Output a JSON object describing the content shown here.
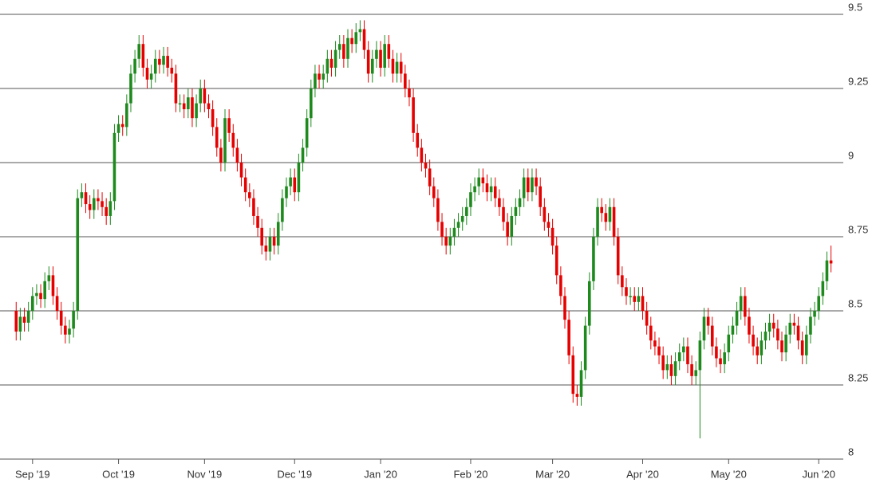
{
  "chart_data": {
    "type": "candlestick",
    "up_color": "#1e8a1e",
    "down_color": "#e60000",
    "grid": true,
    "ylim": [
      8,
      9.5
    ],
    "yticks": [
      8,
      8.25,
      8.5,
      8.75,
      9,
      9.25,
      9.5
    ],
    "xlim": [
      -2,
      202
    ],
    "xticks": [
      {
        "value": 4,
        "label": "Sep '19"
      },
      {
        "value": 25,
        "label": "Oct '19"
      },
      {
        "value": 46,
        "label": "Nov '19"
      },
      {
        "value": 68,
        "label": "Dec '19"
      },
      {
        "value": 89,
        "label": "Jan '20"
      },
      {
        "value": 111,
        "label": "Feb '20"
      },
      {
        "value": 131,
        "label": "Mar '20"
      },
      {
        "value": 153,
        "label": "Apr '20"
      },
      {
        "value": 174,
        "label": "May '20"
      },
      {
        "value": 196,
        "label": "Jun '20"
      }
    ],
    "categories": [
      null,
      null,
      null,
      null,
      null,
      null,
      null,
      null,
      null,
      null,
      null,
      null,
      null,
      null,
      null,
      null,
      null,
      null,
      null,
      null,
      null,
      null,
      null,
      null,
      null,
      null,
      null,
      null,
      null,
      null,
      null,
      null,
      null,
      null,
      null,
      null,
      null,
      null,
      null,
      null,
      null,
      null,
      null,
      null,
      null,
      null,
      null,
      null,
      null,
      null,
      null,
      null,
      null,
      null,
      null,
      null,
      null,
      null,
      null,
      null,
      null,
      null,
      null,
      null,
      null,
      null,
      null,
      null,
      null,
      null,
      null,
      null,
      null,
      null,
      null,
      null,
      null,
      null,
      null,
      null,
      null,
      null,
      null,
      null,
      null,
      null,
      null,
      null,
      null,
      null,
      null,
      null,
      null,
      null,
      null,
      null,
      null,
      null,
      null,
      null,
      null,
      null,
      null,
      null,
      null,
      null,
      null,
      null,
      null,
      null,
      null,
      null,
      null,
      null,
      null,
      null,
      null,
      null,
      null,
      null,
      null,
      null,
      null,
      null,
      null,
      null,
      null,
      null,
      null,
      null,
      null,
      null,
      null,
      null,
      null,
      null,
      null,
      null,
      null,
      null,
      null,
      null,
      null,
      null,
      null,
      null,
      null,
      null,
      null,
      null,
      null,
      null,
      null,
      null,
      null,
      null,
      null,
      null,
      null,
      null,
      null,
      null,
      null,
      null,
      null,
      null,
      null,
      null,
      null,
      null,
      null,
      null,
      null,
      null,
      null,
      null,
      null,
      null,
      null,
      null,
      null,
      null,
      null,
      null,
      null,
      null,
      null,
      null,
      null,
      null,
      null,
      null,
      null,
      null,
      null,
      null,
      null,
      null,
      null,
      null
    ],
    "open": [
      8.5,
      8.43,
      8.48,
      8.46,
      8.5,
      8.55,
      8.56,
      8.54,
      8.6,
      8.62,
      8.55,
      8.5,
      8.45,
      8.42,
      8.44,
      8.5,
      8.88,
      8.9,
      8.86,
      8.84,
      8.88,
      8.87,
      8.85,
      8.82,
      8.87,
      9.1,
      9.13,
      9.12,
      9.2,
      9.3,
      9.35,
      9.4,
      9.32,
      9.28,
      9.3,
      9.35,
      9.33,
      9.36,
      9.32,
      9.3,
      9.2,
      9.2,
      9.18,
      9.22,
      9.15,
      9.2,
      9.25,
      9.2,
      9.18,
      9.12,
      9.05,
      9.0,
      9.15,
      9.1,
      9.05,
      9.0,
      8.95,
      8.9,
      8.88,
      8.82,
      8.78,
      8.72,
      8.7,
      8.75,
      8.72,
      8.8,
      8.88,
      8.92,
      8.95,
      8.9,
      9.0,
      9.05,
      9.15,
      9.25,
      9.3,
      9.28,
      9.3,
      9.35,
      9.32,
      9.38,
      9.4,
      9.35,
      9.42,
      9.4,
      9.44,
      9.45,
      9.38,
      9.3,
      9.35,
      9.38,
      9.32,
      9.4,
      9.35,
      9.3,
      9.34,
      9.3,
      9.25,
      9.22,
      9.1,
      9.05,
      9.0,
      8.98,
      8.92,
      8.88,
      8.8,
      8.75,
      8.72,
      8.75,
      8.78,
      8.8,
      8.82,
      8.85,
      8.9,
      8.92,
      8.95,
      8.93,
      8.9,
      8.92,
      8.88,
      8.85,
      8.8,
      8.75,
      8.82,
      8.85,
      8.88,
      8.95,
      8.9,
      8.95,
      8.92,
      8.85,
      8.8,
      8.78,
      8.72,
      8.62,
      8.55,
      8.47,
      8.35,
      8.22,
      8.21,
      8.3,
      8.45,
      8.6,
      8.75,
      8.85,
      8.83,
      8.8,
      8.85,
      8.75,
      8.62,
      8.58,
      8.55,
      8.55,
      8.53,
      8.55,
      8.5,
      8.45,
      8.4,
      8.38,
      8.35,
      8.3,
      8.32,
      8.28,
      8.33,
      8.36,
      8.38,
      8.32,
      8.28,
      8.3,
      8.4,
      8.48,
      8.45,
      8.38,
      8.34,
      8.32,
      8.36,
      8.42,
      8.45,
      8.5,
      8.55,
      8.48,
      8.42,
      8.38,
      8.35,
      8.4,
      8.43,
      8.46,
      8.44,
      8.4,
      8.36,
      8.42,
      8.46,
      8.45,
      8.4,
      8.35,
      8.42,
      8.48,
      8.5,
      8.55,
      8.6,
      8.67
    ],
    "high": [
      8.53,
      8.51,
      8.51,
      8.53,
      8.58,
      8.59,
      8.59,
      8.63,
      8.65,
      8.65,
      8.58,
      8.53,
      8.48,
      8.47,
      8.53,
      8.91,
      8.93,
      8.93,
      8.89,
      8.91,
      8.91,
      8.9,
      8.88,
      8.9,
      9.13,
      9.16,
      9.16,
      9.23,
      9.33,
      9.38,
      9.43,
      9.43,
      9.35,
      9.33,
      9.38,
      9.38,
      9.39,
      9.39,
      9.35,
      9.33,
      9.23,
      9.23,
      9.25,
      9.25,
      9.23,
      9.28,
      9.28,
      9.23,
      9.21,
      9.15,
      9.08,
      9.18,
      9.18,
      9.13,
      9.08,
      9.03,
      8.98,
      8.93,
      8.91,
      8.85,
      8.81,
      8.75,
      8.78,
      8.78,
      8.83,
      8.91,
      8.95,
      8.98,
      8.98,
      9.03,
      9.08,
      9.18,
      9.28,
      9.33,
      9.33,
      9.33,
      9.38,
      9.38,
      9.41,
      9.43,
      9.43,
      9.45,
      9.45,
      9.47,
      9.48,
      9.48,
      9.41,
      9.38,
      9.41,
      9.41,
      9.43,
      9.43,
      9.38,
      9.37,
      9.37,
      9.33,
      9.28,
      9.25,
      9.13,
      9.08,
      9.03,
      9.01,
      8.95,
      8.91,
      8.83,
      8.78,
      8.78,
      8.81,
      8.83,
      8.85,
      8.88,
      8.93,
      8.95,
      8.98,
      8.98,
      8.96,
      8.95,
      8.95,
      8.91,
      8.88,
      8.83,
      8.85,
      8.88,
      8.91,
      8.98,
      8.98,
      8.98,
      8.98,
      8.95,
      8.88,
      8.83,
      8.81,
      8.75,
      8.65,
      8.58,
      8.5,
      8.38,
      8.25,
      8.33,
      8.48,
      8.63,
      8.78,
      8.88,
      8.88,
      8.86,
      8.88,
      8.88,
      8.78,
      8.65,
      8.61,
      8.58,
      8.58,
      8.58,
      8.58,
      8.53,
      8.48,
      8.43,
      8.41,
      8.38,
      8.35,
      8.35,
      8.36,
      8.39,
      8.41,
      8.41,
      8.35,
      8.33,
      8.43,
      8.51,
      8.51,
      8.48,
      8.41,
      8.37,
      8.39,
      8.45,
      8.48,
      8.53,
      8.58,
      8.58,
      8.51,
      8.45,
      8.41,
      8.43,
      8.46,
      8.49,
      8.49,
      8.47,
      8.43,
      8.45,
      8.49,
      8.49,
      8.48,
      8.43,
      8.45,
      8.51,
      8.53,
      8.58,
      8.63,
      8.7,
      8.72
    ],
    "low": [
      8.4,
      8.4,
      8.43,
      8.43,
      8.47,
      8.52,
      8.51,
      8.51,
      8.57,
      8.52,
      8.47,
      8.42,
      8.39,
      8.39,
      8.41,
      8.47,
      8.85,
      8.83,
      8.81,
      8.81,
      8.84,
      8.82,
      8.79,
      8.79,
      8.84,
      9.07,
      9.09,
      9.09,
      9.17,
      9.27,
      9.32,
      9.29,
      9.25,
      9.25,
      9.27,
      9.3,
      9.3,
      9.29,
      9.27,
      9.17,
      9.17,
      9.15,
      9.15,
      9.12,
      9.12,
      9.17,
      9.17,
      9.15,
      9.09,
      9.02,
      8.97,
      8.97,
      9.07,
      9.02,
      8.97,
      8.92,
      8.87,
      8.85,
      8.79,
      8.75,
      8.69,
      8.67,
      8.67,
      8.69,
      8.69,
      8.77,
      8.85,
      8.89,
      8.87,
      8.87,
      8.97,
      9.02,
      9.12,
      9.22,
      9.25,
      9.25,
      9.27,
      9.29,
      9.29,
      9.35,
      9.32,
      9.32,
      9.37,
      9.37,
      9.41,
      9.35,
      9.27,
      9.27,
      9.32,
      9.29,
      9.29,
      9.32,
      9.27,
      9.27,
      9.27,
      9.22,
      9.19,
      9.07,
      9.02,
      8.97,
      8.95,
      8.89,
      8.85,
      8.77,
      8.72,
      8.69,
      8.69,
      8.72,
      8.75,
      8.77,
      8.79,
      8.82,
      8.87,
      8.89,
      8.9,
      8.87,
      8.87,
      8.85,
      8.82,
      8.77,
      8.72,
      8.72,
      8.79,
      8.82,
      8.85,
      8.87,
      8.87,
      8.89,
      8.82,
      8.77,
      8.75,
      8.69,
      8.59,
      8.52,
      8.44,
      8.32,
      8.19,
      8.18,
      8.18,
      8.27,
      8.42,
      8.57,
      8.72,
      8.8,
      8.77,
      8.77,
      8.72,
      8.59,
      8.55,
      8.52,
      8.52,
      8.5,
      8.5,
      8.47,
      8.42,
      8.37,
      8.35,
      8.32,
      8.27,
      8.27,
      8.25,
      8.25,
      8.3,
      8.33,
      8.29,
      8.25,
      8.25,
      8.07,
      8.37,
      8.42,
      8.35,
      8.31,
      8.29,
      8.29,
      8.33,
      8.39,
      8.42,
      8.47,
      8.45,
      8.39,
      8.35,
      8.32,
      8.32,
      8.37,
      8.4,
      8.41,
      8.37,
      8.33,
      8.33,
      8.39,
      8.42,
      8.37,
      8.32,
      8.32,
      8.39,
      8.45,
      8.47,
      8.52,
      8.57,
      8.63
    ],
    "close": [
      8.43,
      8.48,
      8.46,
      8.5,
      8.55,
      8.56,
      8.54,
      8.6,
      8.62,
      8.55,
      8.5,
      8.45,
      8.42,
      8.44,
      8.5,
      8.88,
      8.9,
      8.86,
      8.84,
      8.88,
      8.87,
      8.85,
      8.82,
      8.87,
      9.1,
      9.13,
      9.12,
      9.2,
      9.3,
      9.35,
      9.4,
      9.32,
      9.28,
      9.3,
      9.35,
      9.33,
      9.36,
      9.32,
      9.3,
      9.2,
      9.2,
      9.18,
      9.22,
      9.15,
      9.2,
      9.25,
      9.2,
      9.18,
      9.12,
      9.05,
      9.0,
      9.15,
      9.1,
      9.05,
      9.0,
      8.95,
      8.9,
      8.88,
      8.82,
      8.78,
      8.72,
      8.7,
      8.75,
      8.72,
      8.8,
      8.88,
      8.92,
      8.95,
      8.9,
      9.0,
      9.05,
      9.15,
      9.25,
      9.3,
      9.28,
      9.3,
      9.35,
      9.32,
      9.38,
      9.4,
      9.35,
      9.42,
      9.4,
      9.44,
      9.45,
      9.38,
      9.3,
      9.35,
      9.38,
      9.32,
      9.4,
      9.35,
      9.3,
      9.34,
      9.3,
      9.25,
      9.22,
      9.1,
      9.05,
      9.0,
      8.98,
      8.92,
      8.88,
      8.8,
      8.75,
      8.72,
      8.75,
      8.78,
      8.8,
      8.82,
      8.85,
      8.9,
      8.92,
      8.95,
      8.93,
      8.9,
      8.92,
      8.88,
      8.85,
      8.8,
      8.75,
      8.82,
      8.85,
      8.88,
      8.95,
      8.9,
      8.95,
      8.92,
      8.85,
      8.8,
      8.78,
      8.72,
      8.62,
      8.55,
      8.47,
      8.35,
      8.22,
      8.21,
      8.3,
      8.45,
      8.6,
      8.75,
      8.85,
      8.83,
      8.8,
      8.85,
      8.75,
      8.62,
      8.58,
      8.55,
      8.55,
      8.53,
      8.55,
      8.5,
      8.45,
      8.4,
      8.38,
      8.35,
      8.3,
      8.32,
      8.28,
      8.33,
      8.36,
      8.38,
      8.32,
      8.28,
      8.3,
      8.4,
      8.48,
      8.45,
      8.38,
      8.34,
      8.32,
      8.36,
      8.42,
      8.45,
      8.5,
      8.55,
      8.48,
      8.42,
      8.38,
      8.35,
      8.4,
      8.43,
      8.46,
      8.44,
      8.4,
      8.36,
      8.42,
      8.46,
      8.45,
      8.4,
      8.35,
      8.42,
      8.48,
      8.5,
      8.55,
      8.6,
      8.67,
      8.66
    ]
  }
}
